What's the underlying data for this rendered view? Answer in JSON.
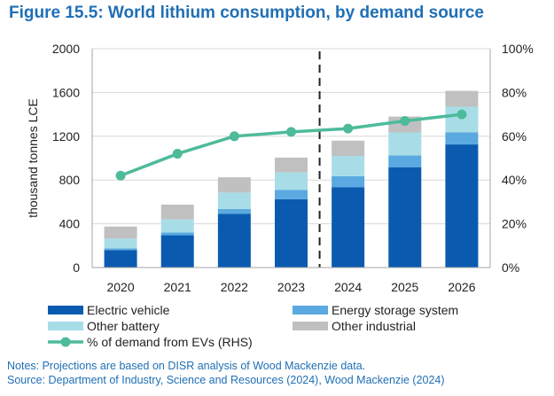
{
  "figure_title": "Figure 15.5: World lithium consumption, by demand source",
  "notes": "Notes: Projections are based on DISR analysis of Wood Mackenzie data.",
  "source": "Source: Department of Industry, Science and Resources (2024), Wood Mackenzie (2024)",
  "chart_data": {
    "type": "bar",
    "stacked": true,
    "categories": [
      "2020",
      "2021",
      "2022",
      "2023",
      "2024",
      "2025",
      "2026"
    ],
    "ylabel": "thousand tonnes LCE",
    "ylim": [
      0,
      2000
    ],
    "y_ticks": [
      "0",
      "400",
      "800",
      "1200",
      "1600",
      "2000"
    ],
    "y2lim": [
      0,
      100
    ],
    "y2_ticks": [
      "0%",
      "20%",
      "40%",
      "60%",
      "80%",
      "100%"
    ],
    "grid": true,
    "projection_divider_after": "2023",
    "series": [
      {
        "name": "Electric vehicle",
        "color": "#0a5bb0",
        "values": [
          160,
          295,
          490,
          625,
          735,
          915,
          1125
        ]
      },
      {
        "name": "Energy storage system",
        "color": "#5aa9e0",
        "values": [
          15,
          25,
          45,
          85,
          100,
          110,
          110
        ]
      },
      {
        "name": "Other battery",
        "color": "#a8dde8",
        "values": [
          90,
          120,
          150,
          160,
          185,
          210,
          235
        ]
      },
      {
        "name": "Other industrial",
        "color": "#c0c0c0",
        "values": [
          110,
          135,
          140,
          135,
          140,
          145,
          145
        ]
      }
    ],
    "line_series": {
      "name": "% of demand from EVs (RHS)",
      "color": "#4dbb9a",
      "axis": "right",
      "values": [
        42,
        52,
        60,
        62,
        63.5,
        67,
        70
      ]
    },
    "legend": {
      "position": "bottom",
      "items": [
        "Electric vehicle",
        "Energy storage system",
        "Other battery",
        "Other industrial",
        "% of demand from EVs (RHS)"
      ]
    }
  }
}
